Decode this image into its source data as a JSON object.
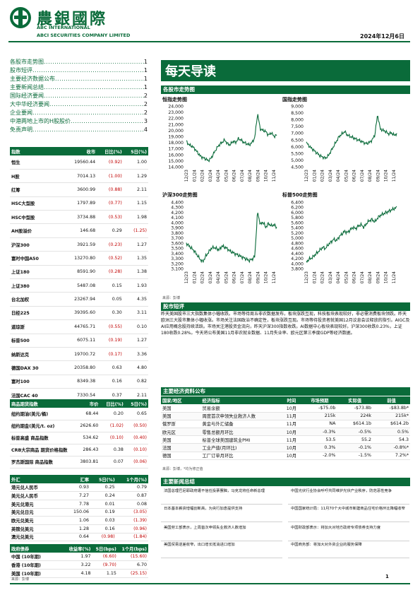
{
  "header": {
    "brand_cn": "農銀國際",
    "brand_en1": "ABC INTERNATIONAL",
    "brand_en2": "ABCI SECURITIES COMPANY LIMITED",
    "date": "2024年12月6日"
  },
  "toc": [
    {
      "label": "各股市走势图",
      "page": "1"
    },
    {
      "label": "股市短评",
      "page": "1"
    },
    {
      "label": "主要经济数据公布",
      "page": "1"
    },
    {
      "label": "主要新闻总结",
      "page": "1"
    },
    {
      "label": "国际经济要闻",
      "page": "2"
    },
    {
      "label": "大中华经济要闻",
      "page": "2"
    },
    {
      "label": "企业要闻",
      "page": "2"
    },
    {
      "label": "中港两地上市的H股股价",
      "page": "3"
    },
    {
      "label": "免责声明",
      "page": "4"
    }
  ],
  "title": "每天导读",
  "charts_section": "各股市走势图",
  "charts": [
    {
      "title": "恒指走势图",
      "yticks": [
        "24,000",
        "23,000",
        "22,000",
        "21,000",
        "20,000",
        "19,000",
        "18,000",
        "17,000",
        "16,000",
        "15,000",
        "14,000"
      ]
    },
    {
      "title": "国指走势图",
      "yticks": [
        "9,000",
        "8,500",
        "8,000",
        "7,500",
        "7,000",
        "6,500",
        "6,000",
        "5,500",
        "5,000",
        "4,500"
      ]
    },
    {
      "title": "沪深300走势图",
      "yticks": [
        "4,400",
        "4,300",
        "4,200",
        "4,100",
        "4,000",
        "3,900",
        "3,800",
        "3,700",
        "3,600",
        "3,500",
        "3,400",
        "3,300",
        "3,200",
        "3,100"
      ]
    },
    {
      "title": "标普500走势图",
      "yticks": [
        "6,400",
        "6,200",
        "6,000",
        "5,800",
        "5,600",
        "5,400",
        "5,200",
        "5,000",
        "4,800",
        "4,600",
        "4,400",
        "4,200",
        "4,000",
        "3,800"
      ]
    }
  ],
  "chart_xticks": [
    "12/23",
    "01/24",
    "02/24",
    "03/24",
    "04/24",
    "05/24",
    "06/24",
    "07/24",
    "08/24",
    "09/24",
    "10/24",
    "11/24"
  ],
  "chart_source": "来源：彭博",
  "index_table": {
    "headers": [
      "指数",
      "收市",
      "日比(%)",
      "5日(%)"
    ],
    "rows": [
      [
        "恒生",
        "19560.44",
        "(0.92)",
        "1.00"
      ],
      [
        "H股",
        "7014.13",
        "(1.00)",
        "1.29"
      ],
      [
        "红筹",
        "3600.99",
        "(0.88)",
        "2.11"
      ],
      [
        "HSC大型股",
        "1797.89",
        "(0.77)",
        "1.15"
      ],
      [
        "HSC中型股",
        "3734.88",
        "(0.53)",
        "1.98"
      ],
      [
        "AH股溢价",
        "146.68",
        "0.29",
        "(1.25)"
      ],
      [
        "沪深300",
        "3921.59",
        "(0.23)",
        "1.27"
      ],
      [
        "富时中国A50",
        "13270.80",
        "(0.52)",
        "1.35"
      ],
      [
        "上证180",
        "8591.90",
        "(0.28)",
        "1.38"
      ],
      [
        "上证380",
        "5487.08",
        "0.15",
        "1.93"
      ],
      [
        "台北加权",
        "23267.94",
        "0.05",
        "4.35"
      ],
      [
        "日经225",
        "39395.60",
        "0.30",
        "3.11"
      ],
      [
        "道琼斯",
        "44765.71",
        "(0.55)",
        "0.10"
      ],
      [
        "标普500",
        "6075.11",
        "(0.19)",
        "1.27"
      ],
      [
        "纳斯达克",
        "19700.72",
        "(0.17)",
        "3.36"
      ],
      [
        "德国DAX 30",
        "20358.80",
        "0.63",
        "4.80"
      ],
      [
        "富时100",
        "8349.38",
        "0.16",
        "0.82"
      ],
      [
        "法国CAC 40",
        "7330.54",
        "0.37",
        "2.11"
      ]
    ]
  },
  "commodity_table": {
    "headers": [
      "商品期货指数",
      "市价",
      "日比(%)",
      "5日(%)"
    ],
    "rows": [
      [
        "纽约期油(美元/桶)",
        "68.44",
        "0.20",
        "0.65"
      ],
      [
        "纽约期金(美元/t. oz)",
        "2626.60",
        "(1.02)",
        "(0.50)"
      ],
      [
        "标普高盛 商品指数",
        "534.62",
        "(0.10)",
        "(0.40)"
      ],
      [
        "CRB大宗商品 期货价格指数",
        "286.43",
        "0.38",
        "(0.10)"
      ],
      [
        "罗杰斯国际 商品指数",
        "3803.81",
        "0.07",
        "(0.06)"
      ]
    ]
  },
  "fx_table": {
    "headers": [
      "外汇",
      "汇率",
      "5日(%)",
      "1个月(%)"
    ],
    "rows": [
      [
        "港元兑人民币",
        "0.93",
        "0.25",
        "0.79"
      ],
      [
        "美元兑人民币",
        "7.27",
        "0.24",
        "0.87"
      ],
      [
        "美元兑港元",
        "7.78",
        "0.01",
        "0.08"
      ],
      [
        "美元兑日元",
        "150.06",
        "0.19",
        "(3.05)"
      ],
      [
        "欧元兑美元",
        "1.06",
        "0.03",
        "(1.39)"
      ],
      [
        "英镑兑美元",
        "1.28",
        "0.16",
        "(0.96)"
      ],
      [
        "澳元兑美元",
        "0.64",
        "(0.98)",
        "(1.84)"
      ]
    ]
  },
  "bond_table": {
    "headers": [
      "政府债券",
      "收益率(%)",
      "5日(bps)",
      "1个月(bps)"
    ],
    "rows": [
      [
        "中国 (10年期)",
        "1.97",
        "(6.60)",
        "(15.60)"
      ],
      [
        "香港 (10年期)",
        "3.22",
        "(9.70)",
        "6.70"
      ],
      [
        "美国 (10年期)",
        "4.18",
        "1.15",
        "(25.15)"
      ]
    ]
  },
  "table_source": "来源：彭博",
  "market_section": "股市短评",
  "market_text": "昨天美国股市三大指数集体小幅收跌。市场等待周五非农数据发布，板块涨跌互现，科技板块表现较好，非必需消费板块领跌。昨天欧洲三大股市集体小幅收涨。市场关注法国政治不确定性，板块涨跌互现。市场等待投资者就美国12月议息会议释放的指引。AIGC及AI应用概念股持续活跃。市场关注港股资金流向，昨天沪深300指数收跌。AI数据中心板块表现较好。沪深300收跌0.23%，上证180收跌0.28%。今天将公布美国11月非农就业数据、11月失业率、欧元区第三季度GDP等经济数据。",
  "econ_section": "主要经济资料公布",
  "econ_table": {
    "headers": [
      "国家/地区",
      "经济指标",
      "时间",
      "市场预期",
      "实际值",
      "前值"
    ],
    "rows": [
      [
        "美国",
        "贸易余额",
        "10月",
        "-$75.0b",
        "-$73.8b",
        "-$83.8b*"
      ],
      [
        "美国",
        "周度首次申领失业救济人数",
        "11月",
        "215k",
        "224k",
        "215k*"
      ],
      [
        "俄罗斯",
        "黄金与外汇储备",
        "11月",
        "NA",
        "$614.1b",
        "$614.2b"
      ],
      [
        "欧元区",
        "零售总额月环比",
        "10月",
        "-0.3%",
        "-0.5%",
        "0.5%"
      ],
      [
        "美国",
        "标普全球美国建筑业PMI",
        "11月",
        "53.5",
        "55.2",
        "54.3"
      ],
      [
        "法国",
        "工业产值(月环比)",
        "10月",
        "0.3%",
        "-0.1%",
        "-0.8%*"
      ],
      [
        "德国",
        "工厂订单月环比",
        "10月",
        "-2.0%",
        "-1.5%",
        "7.2%*"
      ]
    ],
    "source": "来源：彭博，*均为修正值"
  },
  "news_section": "主要新闻总结",
  "news_left": [
    "法国总理巴尼耶政府遭不信任投票罢黜，马克龙将任命新总理",
    "日本基本薪资增幅创新高，为央行加息提供支持",
    "美国劳工部表示，上周首次申领失业救济人数增加",
    "美国贸易逆差收窄，出口增长抵消进口增加"
  ],
  "news_right": [
    "中国光伏行业协会呼吁共同维护光伏产业秩序，防范恶性竞争",
    "中国国家统计局：11月70个大中城市新建商品住宅价格环比降幅收窄",
    "中国财政部表示：将加大对地方政府专项债券支持力度",
    "中国商务部：将加大对外资企业的服务保障"
  ],
  "page_number": "1"
}
